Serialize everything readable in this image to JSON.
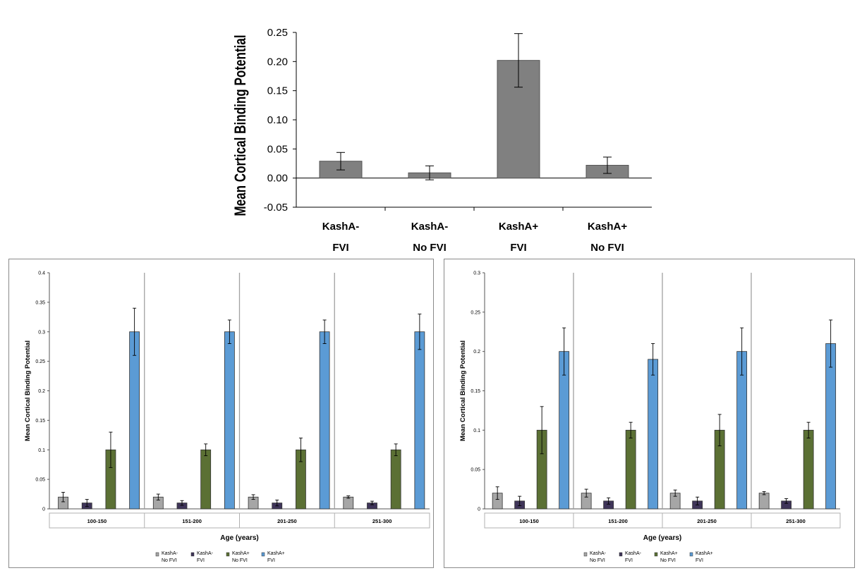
{
  "chart_data": [
    {
      "type": "bar",
      "ylabel": "Mean Cortical Binding Potential",
      "categories": [
        [
          "KashA-",
          "FVI"
        ],
        [
          "KashA-",
          "No FVI"
        ],
        [
          "KashA+",
          "FVI"
        ],
        [
          "KashA+",
          "No FVI"
        ]
      ],
      "values": [
        0.029,
        0.009,
        0.202,
        0.022
      ],
      "errors": [
        0.015,
        0.012,
        0.046,
        0.014
      ],
      "ylim": [
        -0.05,
        0.25
      ],
      "yticks": [
        "0.25",
        "0.20",
        "0.15",
        "0.10",
        "0.05",
        "0.00",
        "-0.05"
      ],
      "grid": false,
      "colors": {
        "bar": "#808080"
      }
    },
    {
      "type": "bar",
      "ylabel": "Mean Cortical Binding Potential",
      "xlabel": "Age (years)",
      "categories": [
        "100-150",
        "151-200",
        "201-250",
        "251-300"
      ],
      "ylim": [
        0,
        0.4
      ],
      "yticks": [
        "0.4",
        "0.35",
        "0.3",
        "0.25",
        "0.2",
        "0.15",
        "0.1",
        "0.05",
        "0"
      ],
      "grid": false,
      "legend_position": "bottom",
      "series": [
        {
          "name": [
            "KashA-",
            "No FVI"
          ],
          "color": "#a6a6a6",
          "values": [
            0.02,
            0.02,
            0.02,
            0.02
          ],
          "errors": [
            0.008,
            0.005,
            0.004,
            0.002
          ]
        },
        {
          "name": [
            "KashA-",
            "FVI"
          ],
          "color": "#3f3559",
          "values": [
            0.01,
            0.01,
            0.01,
            0.01
          ],
          "errors": [
            0.006,
            0.004,
            0.005,
            0.003
          ]
        },
        {
          "name": [
            "KashA+",
            "No FVI"
          ],
          "color": "#5b7034",
          "values": [
            0.1,
            0.1,
            0.1,
            0.1
          ],
          "errors": [
            0.03,
            0.01,
            0.02,
            0.01
          ]
        },
        {
          "name": [
            "KashA+",
            "FVI"
          ],
          "color": "#5b9bd5",
          "values": [
            0.3,
            0.3,
            0.3,
            0.3
          ],
          "errors": [
            0.04,
            0.02,
            0.02,
            0.03
          ]
        }
      ]
    },
    {
      "type": "bar",
      "ylabel": "Mean Cortical Binding Potential",
      "xlabel": "Age (years)",
      "categories": [
        "100-150",
        "151-200",
        "201-250",
        "251-300"
      ],
      "ylim": [
        0,
        0.3
      ],
      "yticks": [
        "0.3",
        "0.25",
        "0.2",
        "0.15",
        "0.1",
        "0.05",
        "0"
      ],
      "grid": false,
      "legend_position": "bottom",
      "series": [
        {
          "name": [
            "KashA-",
            "No FVI"
          ],
          "color": "#a6a6a6",
          "values": [
            0.02,
            0.02,
            0.02,
            0.02
          ],
          "errors": [
            0.008,
            0.005,
            0.004,
            0.002
          ]
        },
        {
          "name": [
            "KashA-",
            "FVI"
          ],
          "color": "#3f3559",
          "values": [
            0.01,
            0.01,
            0.01,
            0.01
          ],
          "errors": [
            0.006,
            0.004,
            0.005,
            0.003
          ]
        },
        {
          "name": [
            "KashA+",
            "No FVI"
          ],
          "color": "#5b7034",
          "values": [
            0.1,
            0.1,
            0.1,
            0.1
          ],
          "errors": [
            0.03,
            0.01,
            0.02,
            0.01
          ]
        },
        {
          "name": [
            "KashA+",
            "FVI"
          ],
          "color": "#5b9bd5",
          "values": [
            0.2,
            0.19,
            0.2,
            0.21
          ],
          "errors": [
            0.03,
            0.02,
            0.03,
            0.03
          ]
        }
      ]
    }
  ]
}
